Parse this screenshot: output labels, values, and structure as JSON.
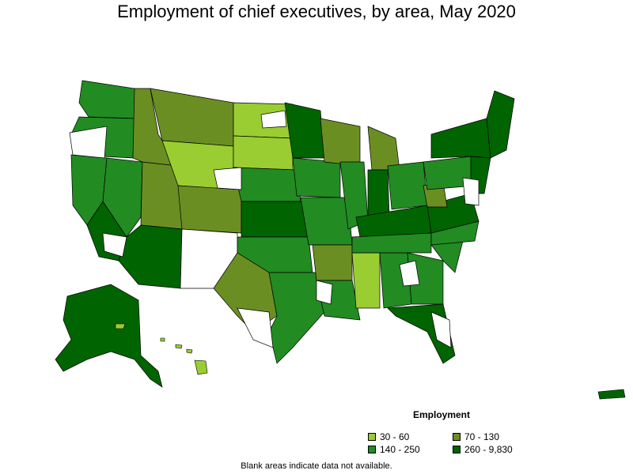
{
  "title": "Employment of chief executives, by area, May 2020",
  "legend": {
    "title": "Employment",
    "bins": [
      {
        "label": "30 - 60",
        "color": "#9acd32"
      },
      {
        "label": "70 - 130",
        "color": "#6b8e23"
      },
      {
        "label": "140 - 250",
        "color": "#228b22"
      },
      {
        "label": "260 - 9,830",
        "color": "#006400"
      }
    ]
  },
  "note": "Blank areas indicate data not available.",
  "colors": {
    "blank": "#ffffff",
    "border": "#000000"
  }
}
